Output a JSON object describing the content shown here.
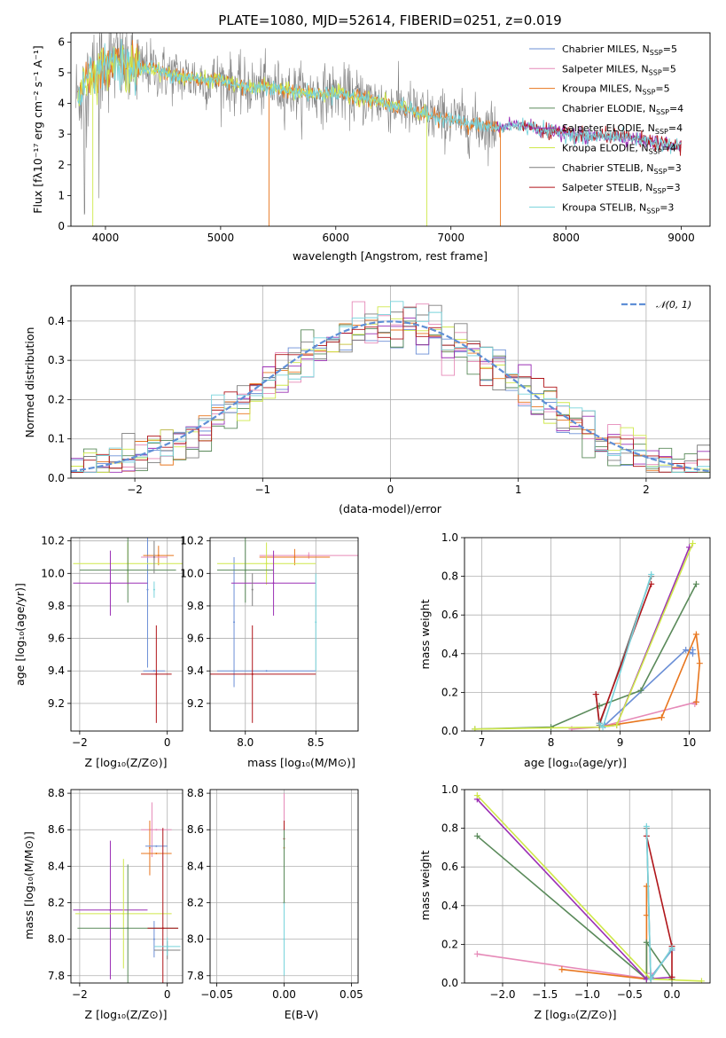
{
  "colors": {
    "chabrier_miles": "#6b8fd6",
    "salpeter_miles": "#e68ab8",
    "kroupa_miles": "#e8761e",
    "chabrier_elodie": "#5a8a5a",
    "salpeter_elodie": "#9b30b5",
    "kroupa_elodie": "#cfe84a",
    "chabrier_stelib": "#7f7f7f",
    "salpeter_stelib": "#b0151a",
    "kroupa_stelib": "#78d3db",
    "normal": "#5f8fd6"
  },
  "chart_data": [
    {
      "id": "spectrum",
      "type": "line",
      "title": "PLATE=1080, MJD=52614, FIBERID=0251, z=0.019",
      "xlabel": "wavelength [Angstrom, rest frame]",
      "ylabel": "Flux [fλ10⁻¹⁷ erg cm⁻² s⁻¹ A⁻¹]",
      "xlim": [
        3700,
        9250
      ],
      "ylim": [
        0,
        6.3
      ],
      "xticks": [
        4000,
        5000,
        6000,
        7000,
        8000,
        9000
      ],
      "yticks": [
        0,
        1,
        2,
        3,
        4,
        5,
        6
      ],
      "continuum": {
        "x": [
          3740,
          3800,
          3900,
          4000,
          4100,
          4200,
          4300,
          4400,
          4500,
          4700,
          4900,
          5000,
          5200,
          5400,
          5600,
          5800,
          6000,
          6200,
          6400,
          6600,
          6800,
          7000,
          7200,
          7400,
          7600,
          7800,
          8000,
          8200,
          8400,
          8600,
          8800,
          9000
        ],
        "y": [
          4.1,
          4.5,
          5.0,
          5.35,
          5.4,
          5.2,
          5.1,
          5.15,
          5.0,
          4.85,
          4.75,
          4.8,
          4.5,
          4.55,
          4.4,
          4.3,
          4.35,
          4.2,
          4.05,
          3.85,
          3.6,
          3.5,
          3.3,
          3.2,
          3.3,
          3.15,
          3.0,
          2.9,
          2.95,
          2.85,
          2.7,
          2.6
        ]
      },
      "legend": {
        "placement": "top-right",
        "entries": [
          {
            "name": "Chabrier MILES, N",
            "sub": "SSP",
            "tail": "=5",
            "color": "chabrier_miles"
          },
          {
            "name": "Salpeter MILES, N",
            "sub": "SSP",
            "tail": "=5",
            "color": "salpeter_miles"
          },
          {
            "name": "Kroupa MILES, N",
            "sub": "SSP",
            "tail": "=5",
            "color": "kroupa_miles"
          },
          {
            "name": "Chabrier ELODIE, N",
            "sub": "SSP",
            "tail": "=4",
            "color": "chabrier_elodie"
          },
          {
            "name": "Salpeter ELODIE, N",
            "sub": "SSP",
            "tail": "=4",
            "color": "salpeter_elodie"
          },
          {
            "name": "Kroupa ELODIE, N",
            "sub": "SSP",
            "tail": "=4",
            "color": "kroupa_elodie"
          },
          {
            "name": "Chabrier STELIB, N",
            "sub": "SSP",
            "tail": "=3",
            "color": "chabrier_stelib"
          },
          {
            "name": "Salpeter STELIB, N",
            "sub": "SSP",
            "tail": "=3",
            "color": "salpeter_stelib"
          },
          {
            "name": "Kroupa STELIB, N",
            "sub": "SSP",
            "tail": "=3",
            "color": "kroupa_stelib"
          }
        ]
      }
    },
    {
      "id": "residuals",
      "type": "step-histogram",
      "xlabel": "(data-model)/error",
      "ylabel": "Normed distribution",
      "xlim": [
        -2.5,
        2.5
      ],
      "ylim": [
        0,
        0.49
      ],
      "xticks": [
        -2,
        -1,
        0,
        1,
        2
      ],
      "yticks": [
        0.0,
        0.1,
        0.2,
        0.3,
        0.4
      ],
      "grid": true,
      "bin_width": 0.1,
      "normal_curve": {
        "label": "𝒩(0, 1)",
        "mean": 0,
        "sigma": 1,
        "style": "dashed"
      },
      "legend_placement": "top-right"
    },
    {
      "id": "age-vs-Z",
      "type": "errorbar",
      "xlabel": "Z [log₁₀(Z/Z⊙)]",
      "ylabel": "age  [log₁₀(age/yr)]",
      "xlim": [
        -2.2,
        0.35
      ],
      "ylim": [
        9.03,
        10.22
      ],
      "xticks": [
        -2,
        0
      ],
      "yticks": [
        9.2,
        9.4,
        9.6,
        9.8,
        10.0,
        10.2
      ],
      "grid": true,
      "points": [
        {
          "color": "chabrier_miles",
          "x": -0.3,
          "xerr": 0.25,
          "y": 9.4,
          "yerr": 0.0
        },
        {
          "color": "chabrier_miles",
          "x": -0.45,
          "xerr": 0.0,
          "y": 9.9,
          "yerr": 0.48
        },
        {
          "color": "kroupa_miles",
          "x": -0.2,
          "xerr": 0.35,
          "y": 10.11,
          "yerr": 0.06
        },
        {
          "color": "salpeter_miles",
          "x": -0.3,
          "xerr": 0.3,
          "y": 10.1,
          "yerr": 0.02
        },
        {
          "color": "kroupa_elodie",
          "x": -0.9,
          "xerr": 1.25,
          "y": 10.06,
          "yerr": 0.13
        },
        {
          "color": "chabrier_elodie",
          "x": -0.9,
          "xerr": 1.1,
          "y": 10.02,
          "yerr": 0.2
        },
        {
          "color": "salpeter_elodie",
          "x": -1.3,
          "xerr": 0.85,
          "y": 9.94,
          "yerr": 0.2
        },
        {
          "color": "salpeter_stelib",
          "x": -0.25,
          "xerr": 0.35,
          "y": 9.38,
          "yerr": 0.3
        },
        {
          "color": "chabrier_stelib",
          "x": -0.3,
          "xerr": 0.0,
          "y": 10.1,
          "yerr": 0.1
        },
        {
          "color": "kroupa_stelib",
          "x": -0.3,
          "xerr": 0.0,
          "y": 9.9,
          "yerr": 0.05
        }
      ]
    },
    {
      "id": "age-vs-mass",
      "type": "errorbar",
      "xlabel": "mass [log₁₀(M/M⊙)]",
      "ylabel": "",
      "xlim": [
        7.75,
        8.8
      ],
      "ylim": [
        9.03,
        10.22
      ],
      "xticks": [
        8.0,
        8.5
      ],
      "yticks": [
        9.2,
        9.4,
        9.6,
        9.8,
        10.0,
        10.2
      ],
      "grid": true,
      "points": [
        {
          "color": "chabrier_miles",
          "x": 8.15,
          "xerr": 0.35,
          "y": 9.4,
          "yerr": 0.0
        },
        {
          "color": "chabrier_miles",
          "x": 7.92,
          "xerr": 0.0,
          "y": 9.7,
          "yerr": 0.4
        },
        {
          "color": "salpeter_miles",
          "x": 8.45,
          "xerr": 0.35,
          "y": 10.11,
          "yerr": 0.02
        },
        {
          "color": "kroupa_miles",
          "x": 8.35,
          "xerr": 0.25,
          "y": 10.1,
          "yerr": 0.05
        },
        {
          "color": "kroupa_elodie",
          "x": 8.15,
          "xerr": 0.35,
          "y": 10.06,
          "yerr": 0.13
        },
        {
          "color": "chabrier_elodie",
          "x": 8.0,
          "xerr": 0.2,
          "y": 10.02,
          "yerr": 0.2
        },
        {
          "color": "salpeter_elodie",
          "x": 8.2,
          "xerr": 0.3,
          "y": 9.94,
          "yerr": 0.2
        },
        {
          "color": "salpeter_stelib",
          "x": 8.05,
          "xerr": 0.45,
          "y": 9.38,
          "yerr": 0.3
        },
        {
          "color": "chabrier_stelib",
          "x": 8.05,
          "xerr": 0.0,
          "y": 9.9,
          "yerr": 0.1
        },
        {
          "color": "kroupa_stelib",
          "x": 8.5,
          "xerr": 0.0,
          "y": 9.7,
          "yerr": 0.3
        }
      ]
    },
    {
      "id": "mass-weight-vs-age",
      "type": "line",
      "xlabel": "age  [log₁₀(age/yr)]",
      "ylabel": "mass weight",
      "xlim": [
        6.75,
        10.3
      ],
      "ylim": [
        0,
        1.0
      ],
      "xticks": [
        7,
        8,
        9,
        10
      ],
      "yticks": [
        0.0,
        0.2,
        0.4,
        0.6,
        0.8,
        1.0
      ],
      "grid": true,
      "series": [
        {
          "color": "chabrier_miles",
          "x": [
            8.7,
            8.78,
            9.95,
            10.05,
            10.05
          ],
          "y": [
            0.02,
            0.03,
            0.42,
            0.4,
            0.42
          ]
        },
        {
          "color": "salpeter_miles",
          "x": [
            8.3,
            8.7,
            10.1,
            10.08
          ],
          "y": [
            0.01,
            0.02,
            0.15,
            0.14
          ]
        },
        {
          "color": "kroupa_miles",
          "x": [
            8.7,
            9.6,
            10.1,
            10.15,
            10.1
          ],
          "y": [
            0.02,
            0.07,
            0.5,
            0.35,
            0.15
          ]
        },
        {
          "color": "chabrier_elodie",
          "x": [
            6.9,
            8.0,
            8.7,
            9.3,
            10.1
          ],
          "y": [
            0.01,
            0.02,
            0.13,
            0.21,
            0.76
          ]
        },
        {
          "color": "salpeter_elodie",
          "x": [
            8.7,
            8.95,
            10.0
          ],
          "y": [
            0.02,
            0.03,
            0.95
          ]
        },
        {
          "color": "kroupa_elodie",
          "x": [
            6.9,
            8.7,
            8.95,
            10.05
          ],
          "y": [
            0.01,
            0.02,
            0.03,
            0.97
          ]
        },
        {
          "color": "chabrier_stelib",
          "x": [
            8.65,
            8.7,
            9.45
          ],
          "y": [
            0.19,
            0.03,
            0.8
          ]
        },
        {
          "color": "salpeter_stelib",
          "x": [
            8.65,
            8.7,
            9.45
          ],
          "y": [
            0.19,
            0.04,
            0.76
          ]
        },
        {
          "color": "kroupa_stelib",
          "x": [
            8.7,
            8.75,
            9.45
          ],
          "y": [
            0.04,
            0.02,
            0.81
          ]
        }
      ]
    },
    {
      "id": "mass-vs-Z",
      "type": "errorbar",
      "xlabel": "Z [log₁₀(Z/Z⊙)]",
      "ylabel": "mass [log₁₀(M/M⊙)]",
      "xlim": [
        -2.2,
        0.35
      ],
      "ylim": [
        7.76,
        8.82
      ],
      "xticks": [
        -2,
        0
      ],
      "yticks": [
        7.8,
        8.0,
        8.2,
        8.4,
        8.6,
        8.8
      ],
      "grid": true,
      "points": [
        {
          "color": "salpeter_miles",
          "x": -0.35,
          "xerr": 0.0,
          "y": 8.6,
          "yerr": 0.15
        },
        {
          "color": "salpeter_miles",
          "x": -0.25,
          "xerr": 0.35,
          "y": 8.6,
          "yerr": 0.0
        },
        {
          "color": "kroupa_miles",
          "x": -0.4,
          "xerr": 0.0,
          "y": 8.5,
          "yerr": 0.15
        },
        {
          "color": "kroupa_miles",
          "x": -0.25,
          "xerr": 0.35,
          "y": 8.47,
          "yerr": 0.0
        },
        {
          "color": "chabrier_miles",
          "x": -0.25,
          "xerr": 0.25,
          "y": 8.51,
          "yerr": 0.0
        },
        {
          "color": "chabrier_miles",
          "x": -0.3,
          "xerr": 0.0,
          "y": 8.0,
          "yerr": 0.1
        },
        {
          "color": "salpeter_elodie",
          "x": -1.3,
          "xerr": 0.85,
          "y": 8.16,
          "yerr": 0.38
        },
        {
          "color": "kroupa_elodie",
          "x": -1.0,
          "xerr": 1.1,
          "y": 8.14,
          "yerr": 0.3
        },
        {
          "color": "chabrier_elodie",
          "x": -0.9,
          "xerr": 1.15,
          "y": 8.06,
          "yerr": 0.35
        },
        {
          "color": "salpeter_stelib",
          "x": -0.1,
          "xerr": 0.35,
          "y": 8.06,
          "yerr": 0.55
        },
        {
          "color": "chabrier_stelib",
          "x": 0.0,
          "xerr": 0.3,
          "y": 7.94,
          "yerr": 0.05
        },
        {
          "color": "kroupa_stelib",
          "x": 0.0,
          "xerr": 0.3,
          "y": 7.96,
          "yerr": 0.05
        }
      ]
    },
    {
      "id": "mass-vs-ebv",
      "type": "errorbar",
      "xlabel": "E(B-V)",
      "ylabel": "",
      "xlim": [
        -0.055,
        0.055
      ],
      "ylim": [
        7.76,
        8.82
      ],
      "xticks": [
        -0.05,
        0.0,
        0.05
      ],
      "yticks": [
        7.8,
        8.0,
        8.2,
        8.4,
        8.6,
        8.8
      ],
      "grid": true,
      "points": [
        {
          "color": "salpeter_miles",
          "x": 0.0,
          "xerr": 0.0,
          "y": 8.6,
          "yerr": 0.2
        },
        {
          "color": "kroupa_miles",
          "x": 0.0,
          "xerr": 0.0,
          "y": 8.5,
          "yerr": 0.15
        },
        {
          "color": "salpeter_stelib",
          "x": 0.0,
          "xerr": 0.0,
          "y": 8.55,
          "yerr": 0.1
        },
        {
          "color": "chabrier_elodie",
          "x": 0.0,
          "xerr": 0.0,
          "y": 8.2,
          "yerr": 0.4
        },
        {
          "color": "kroupa_stelib",
          "x": 0.0,
          "xerr": 0.0,
          "y": 8.0,
          "yerr": 0.2
        }
      ]
    },
    {
      "id": "mass-weight-vs-Z",
      "type": "line",
      "xlabel": "Z [log₁₀(Z/Z⊙)]",
      "ylabel": "mass weight",
      "xlim": [
        -2.45,
        0.45
      ],
      "ylim": [
        0,
        1.0
      ],
      "xticks": [
        -2.0,
        -1.5,
        -1.0,
        -0.5,
        0.0
      ],
      "yticks": [
        0.0,
        0.2,
        0.4,
        0.6,
        0.8,
        1.0
      ],
      "grid": true,
      "series": [
        {
          "color": "chabrier_miles",
          "x": [
            -0.3,
            -0.25,
            0.0
          ],
          "y": [
            0.02,
            0.03,
            0.17
          ]
        },
        {
          "color": "salpeter_miles",
          "x": [
            -2.3,
            -0.25,
            -0.25
          ],
          "y": [
            0.15,
            0.02,
            0.05
          ]
        },
        {
          "color": "kroupa_miles",
          "x": [
            -1.3,
            -0.3,
            -0.3,
            -0.3
          ],
          "y": [
            0.07,
            0.02,
            0.35,
            0.5
          ]
        },
        {
          "color": "chabrier_elodie",
          "x": [
            -2.3,
            -0.3,
            -0.3,
            0.0
          ],
          "y": [
            0.76,
            0.02,
            0.21,
            0.02
          ]
        },
        {
          "color": "salpeter_elodie",
          "x": [
            -2.3,
            -0.3,
            0.0
          ],
          "y": [
            0.95,
            0.02,
            0.03
          ]
        },
        {
          "color": "kroupa_elodie",
          "x": [
            -2.3,
            -0.25,
            0.35
          ],
          "y": [
            0.97,
            0.02,
            0.01
          ]
        },
        {
          "color": "chabrier_stelib",
          "x": [
            -0.3,
            -0.25,
            0.0
          ],
          "y": [
            0.8,
            0.02,
            0.18
          ]
        },
        {
          "color": "salpeter_stelib",
          "x": [
            -0.3,
            0.0,
            0.0
          ],
          "y": [
            0.76,
            0.19,
            0.03
          ]
        },
        {
          "color": "kroupa_stelib",
          "x": [
            -0.3,
            -0.25,
            0.0
          ],
          "y": [
            0.81,
            0.02,
            0.18
          ]
        }
      ]
    }
  ]
}
